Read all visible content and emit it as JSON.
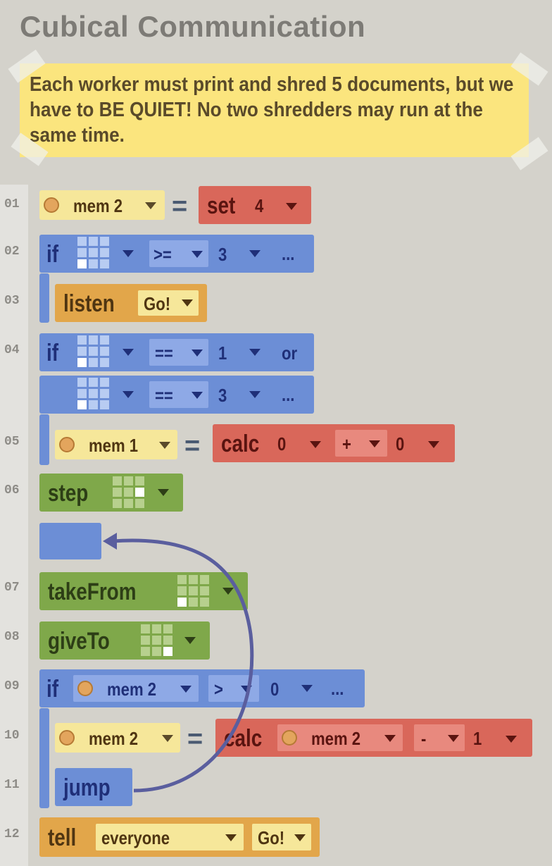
{
  "header": {
    "title": "Cubical Communication"
  },
  "note": {
    "text": "Each worker must print and shred 5 documents, but we have to BE QUIET! No two shredders may run at the same time."
  },
  "line_numbers": [
    "01",
    "02",
    "03",
    "04",
    "05",
    "06",
    "07",
    "08",
    "09",
    "10",
    "11",
    "12"
  ],
  "code": {
    "l01": {
      "mem": "mem 2",
      "eq": "=",
      "fn": "set",
      "arg": "4"
    },
    "l02": {
      "kw": "if",
      "op": ">=",
      "val": "3",
      "more": "..."
    },
    "l03": {
      "kw": "listen",
      "msg": "Go!"
    },
    "l04": {
      "kw": "if",
      "op": "==",
      "val": "1",
      "join": "or"
    },
    "l04b": {
      "op": "==",
      "val": "3",
      "more": "..."
    },
    "l05": {
      "mem": "mem 1",
      "eq": "=",
      "fn": "calc",
      "a": "0",
      "op": "+",
      "b": "0"
    },
    "l06": {
      "kw": "step"
    },
    "l07": {
      "kw": "takeFrom"
    },
    "l08": {
      "kw": "giveTo"
    },
    "l09": {
      "kw": "if",
      "mem": "mem 2",
      "op": ">",
      "val": "0",
      "more": "..."
    },
    "l10": {
      "mem": "mem 2",
      "eq": "=",
      "fn": "calc",
      "mem2": "mem 2",
      "op": "-",
      "val": "1"
    },
    "l11": {
      "kw": "jump"
    },
    "l12": {
      "kw": "tell",
      "target": "everyone",
      "msg": "Go!"
    }
  },
  "colors": {
    "blue": "#6c8ed6",
    "green": "#7fa84a",
    "orange": "#e2a64a",
    "red": "#d9675a",
    "yellow": "#f6e79a",
    "arrow": "#5a5e9e"
  }
}
